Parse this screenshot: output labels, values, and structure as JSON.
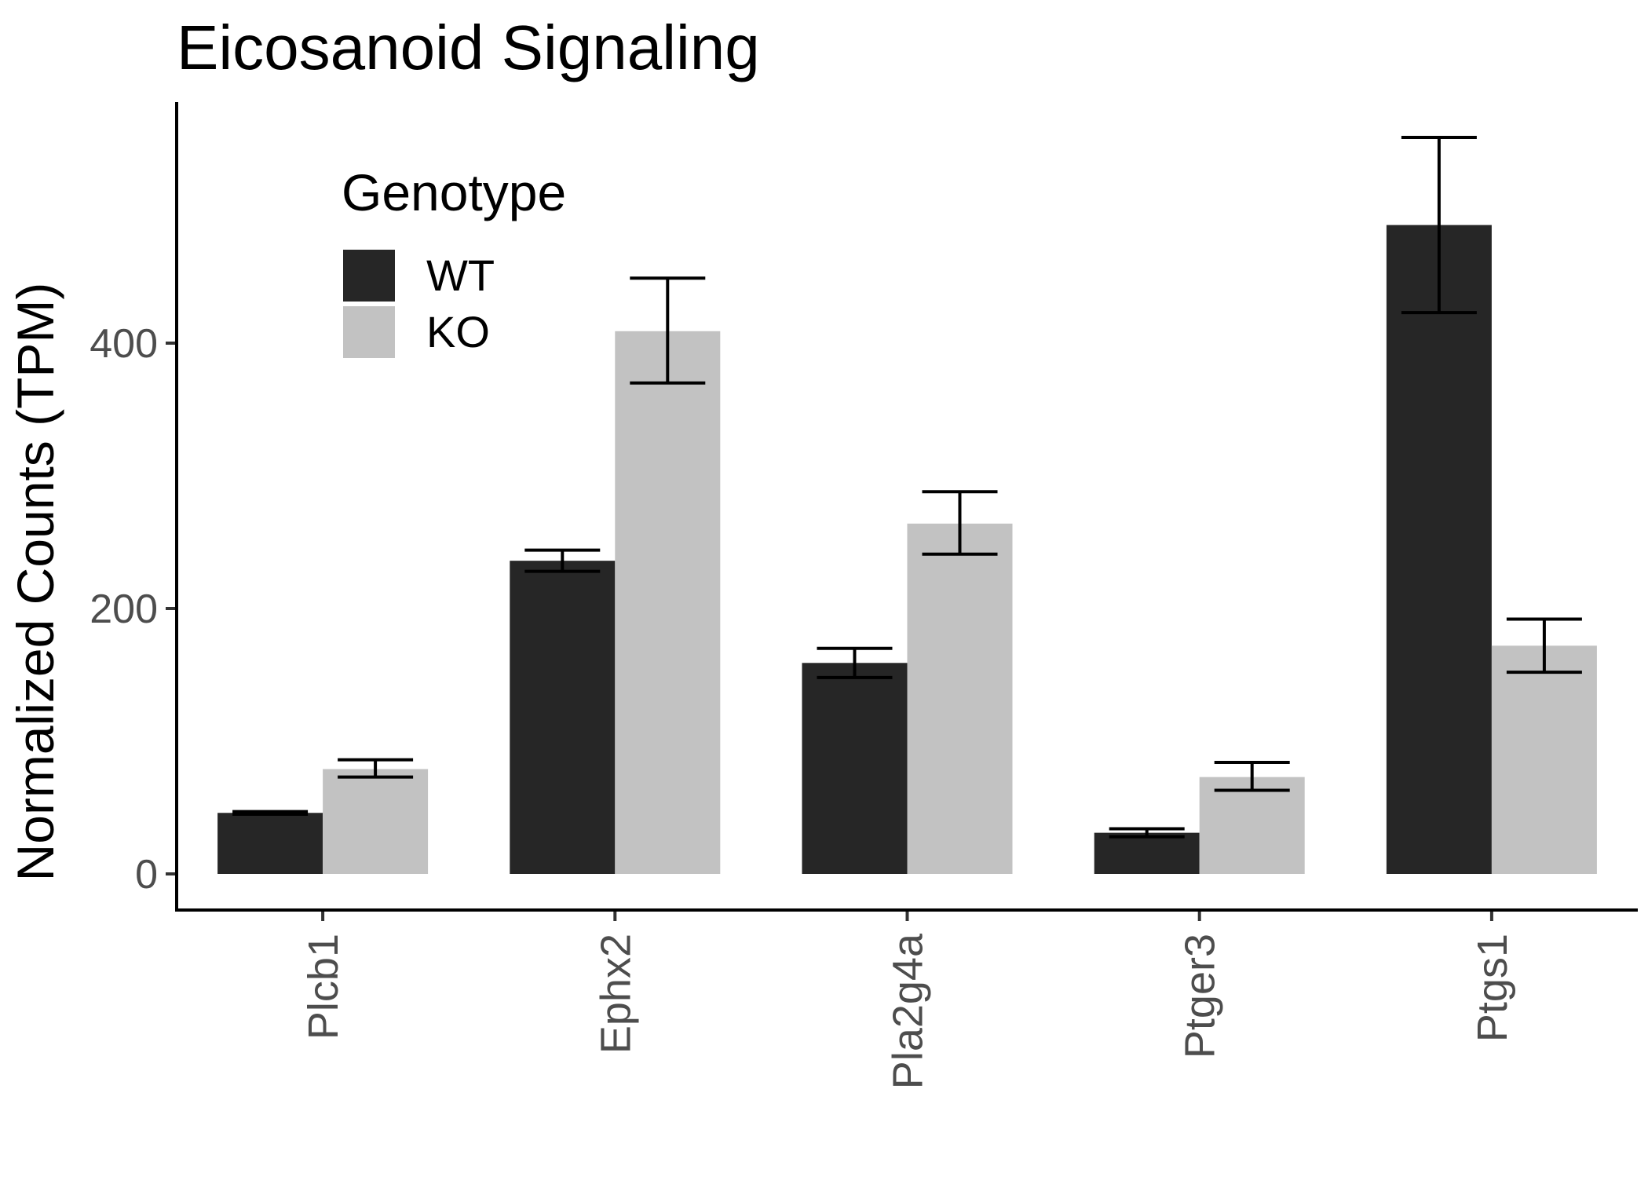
{
  "chart_data": {
    "type": "bar",
    "title": "Eicosanoid Signaling",
    "xlabel": "",
    "ylabel": "Normalized Counts (TPM)",
    "categories": [
      "Plcb1",
      "Ephx2",
      "Pla2g4a",
      "Ptger3",
      "Ptgs1"
    ],
    "series": [
      {
        "name": "WT",
        "color": "#262626",
        "values": [
          46,
          236,
          159,
          31,
          489
        ],
        "err_low": [
          45,
          228,
          148,
          28,
          423
        ],
        "err_high": [
          47,
          244,
          170,
          34,
          555
        ]
      },
      {
        "name": "KO",
        "color": "#c2c2c2",
        "values": [
          79,
          409,
          264,
          73,
          172
        ],
        "err_low": [
          73,
          370,
          241,
          63,
          152
        ],
        "err_high": [
          86,
          449,
          288,
          84,
          192
        ]
      }
    ],
    "ylim": [
      -27,
      583
    ],
    "yticks": [
      0,
      200,
      400
    ],
    "grid": false,
    "legend": {
      "title": "Genotype",
      "placement": "top-left",
      "entries": [
        "WT",
        "KO"
      ]
    }
  }
}
